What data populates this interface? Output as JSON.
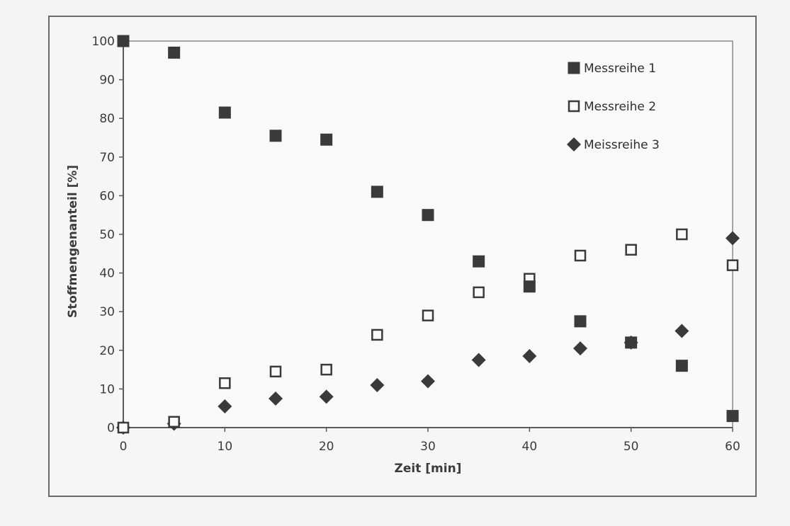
{
  "chart_data": {
    "type": "scatter",
    "title": "",
    "xlabel": "Zeit [min]",
    "ylabel": "Stoffmengenanteil [%]",
    "xlim": [
      0,
      60
    ],
    "ylim": [
      0,
      100
    ],
    "x_ticks": [
      0,
      10,
      20,
      30,
      40,
      50,
      60
    ],
    "y_ticks": [
      0,
      10,
      20,
      30,
      40,
      50,
      60,
      70,
      80,
      90,
      100
    ],
    "grid": false,
    "legend_position": "top-right",
    "series": [
      {
        "name": "Messreihe 1",
        "marker": "filled-square",
        "color": "#3a3a3a",
        "x": [
          0,
          5,
          10,
          15,
          20,
          25,
          30,
          35,
          40,
          45,
          50,
          55,
          60
        ],
        "y": [
          100,
          97,
          81.5,
          75.5,
          74.5,
          61,
          55,
          43,
          36.5,
          27.5,
          22,
          16,
          3
        ]
      },
      {
        "name": "Messreihe 2",
        "marker": "hollow-square",
        "color": "#3a3a3a",
        "x": [
          0,
          5,
          10,
          15,
          20,
          25,
          30,
          35,
          40,
          45,
          50,
          55,
          60
        ],
        "y": [
          0,
          1.5,
          11.5,
          14.5,
          15,
          24,
          29,
          35,
          38.5,
          44.5,
          46,
          50,
          42
        ]
      },
      {
        "name": "Meissreihe 3",
        "marker": "filled-diamond",
        "color": "#3a3a3a",
        "x": [
          0,
          5,
          10,
          15,
          20,
          25,
          30,
          35,
          40,
          45,
          50,
          55,
          60
        ],
        "y": [
          0,
          1,
          5.5,
          7.5,
          8,
          11,
          12,
          17.5,
          18.5,
          20.5,
          22,
          25,
          49
        ]
      }
    ]
  }
}
